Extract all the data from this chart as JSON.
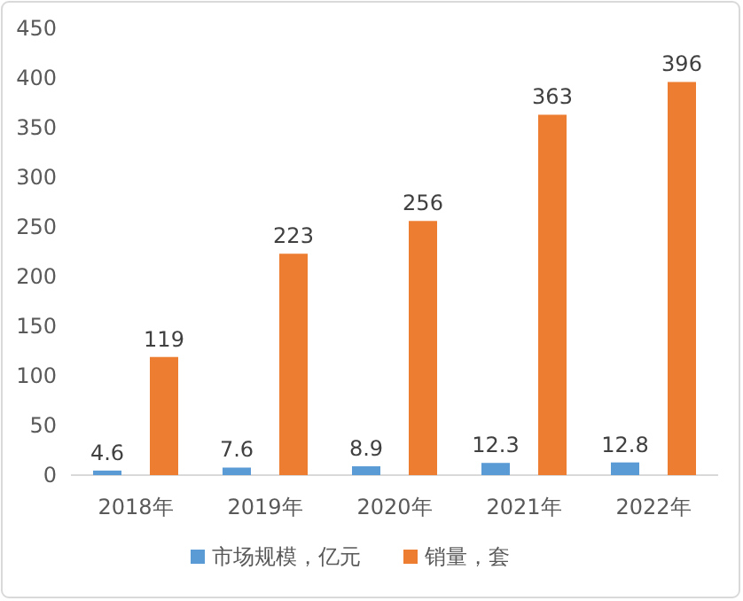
{
  "chart_data": {
    "type": "bar",
    "categories": [
      "2018年",
      "2019年",
      "2020年",
      "2021年",
      "2022年"
    ],
    "series": [
      {
        "name": "市场规模，亿元",
        "color": "#5b9bd5",
        "values": [
          4.6,
          7.6,
          8.9,
          12.3,
          12.8
        ]
      },
      {
        "name": "销量，套",
        "color": "#ed7d31",
        "values": [
          119,
          223,
          256,
          363,
          396
        ]
      }
    ],
    "ylim": [
      0,
      450
    ],
    "yticks": [
      0,
      50,
      100,
      150,
      200,
      250,
      300,
      350,
      400,
      450
    ],
    "data_labels": true,
    "legend": "bottom",
    "grid": false
  }
}
